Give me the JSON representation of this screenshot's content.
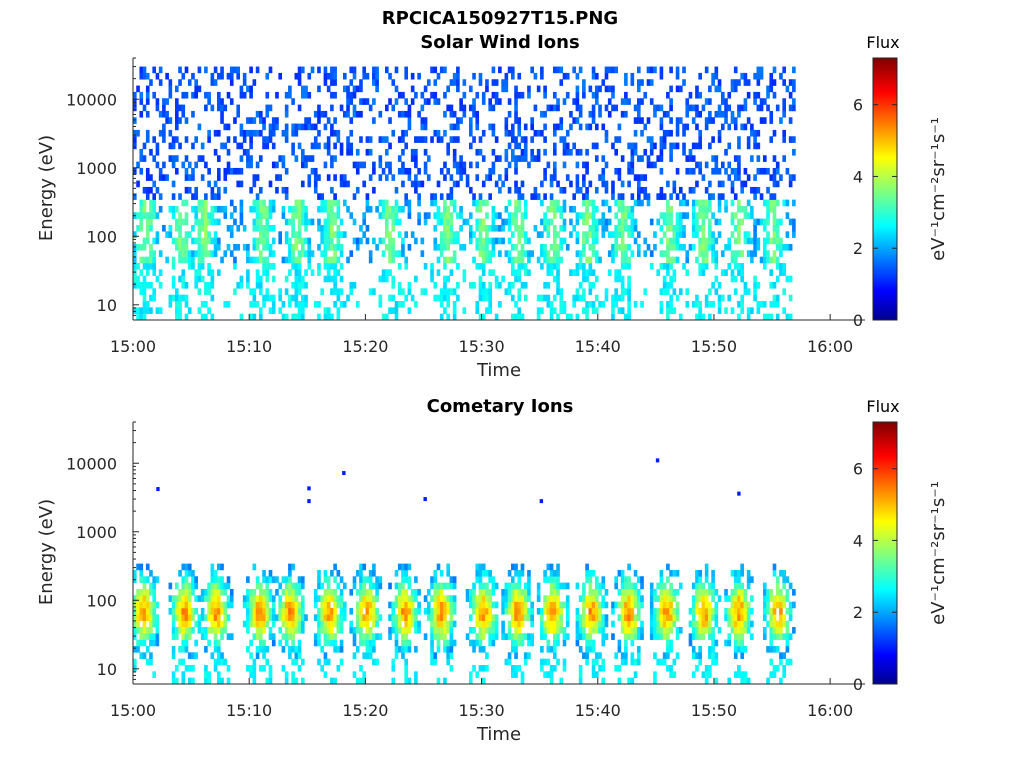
{
  "figure": {
    "title": "RPCICA150927T15.PNG"
  },
  "colors": {
    "axis": "#262626",
    "colormap": "jet",
    "background": "#ffffff"
  },
  "chart_data": [
    {
      "type": "heatmap",
      "title": "Solar Wind Ions",
      "xlabel": "Time",
      "ylabel": "Energy (eV)",
      "x_ticks": [
        "15:00",
        "15:10",
        "15:20",
        "15:30",
        "15:40",
        "15:50",
        "16:00"
      ],
      "x_range": [
        "15:00",
        "16:03"
      ],
      "data_end_time": "15:57",
      "y_scale": "log",
      "y_ticks": [
        "10",
        "100",
        "1000",
        "10000"
      ],
      "y_range": [
        6,
        40000
      ],
      "colorbar": {
        "title": "Flux",
        "label": "eV⁻¹cm⁻²sr⁻¹s⁻¹",
        "ticks": [
          "0",
          "2",
          "4",
          "6"
        ],
        "range": [
          0,
          7.3
        ]
      },
      "features": {
        "low_energy_bursts_minutes": [
          1,
          4,
          6,
          11,
          14,
          17,
          22,
          27,
          30,
          33,
          36,
          39,
          42,
          46,
          49,
          52,
          55
        ],
        "scatter_energy_range_eV": [
          300,
          15000
        ],
        "typical_flux_high_energy": 1.2,
        "typical_flux_low_energy": 3.0
      }
    },
    {
      "type": "heatmap",
      "title": "Cometary Ions",
      "xlabel": "Time",
      "ylabel": "Energy (eV)",
      "x_ticks": [
        "15:00",
        "15:10",
        "15:20",
        "15:30",
        "15:40",
        "15:50",
        "16:00"
      ],
      "x_range": [
        "15:00",
        "16:03"
      ],
      "data_end_time": "15:57",
      "y_scale": "log",
      "y_ticks": [
        "10",
        "100",
        "1000",
        "10000"
      ],
      "y_range": [
        6,
        40000
      ],
      "colorbar": {
        "title": "Flux",
        "label": "eV⁻¹cm⁻²sr⁻¹s⁻¹",
        "ticks": [
          "0",
          "2",
          "4",
          "6"
        ],
        "range": [
          0,
          7.3
        ]
      },
      "features": {
        "burst_center_minutes": [
          0.8,
          4.3,
          7.0,
          10.8,
          13.4,
          16.8,
          20.0,
          23.3,
          26.4,
          30.0,
          33.0,
          36.0,
          39.3,
          42.5,
          45.8,
          49.0,
          52.0,
          55.4
        ],
        "burst_peak_energy_eV": 60,
        "burst_peak_flux": 5.3,
        "isolated_points": [
          {
            "time": "15:02",
            "energy": 4200
          },
          {
            "time": "15:15",
            "energy": 4300
          },
          {
            "time": "15:15",
            "energy": 2800
          },
          {
            "time": "15:18",
            "energy": 7200
          },
          {
            "time": "15:25",
            "energy": 3000
          },
          {
            "time": "15:35",
            "energy": 2800
          },
          {
            "time": "15:45",
            "energy": 11000
          },
          {
            "time": "15:52",
            "energy": 3600
          }
        ]
      }
    }
  ]
}
